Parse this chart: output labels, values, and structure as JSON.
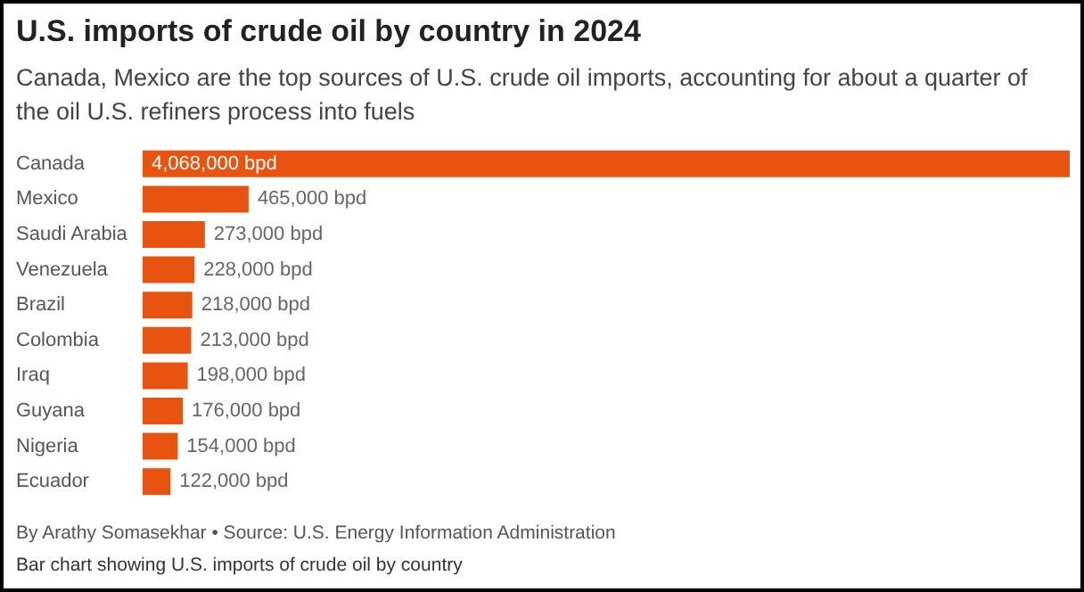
{
  "chart_data": {
    "type": "bar",
    "orientation": "horizontal",
    "title": "U.S. imports of crude oil by country in 2024",
    "subtitle": "Canada, Mexico are the top sources of U.S. crude oil imports, accounting for about a quarter of the oil U.S. refiners process into fuels",
    "categories": [
      "Canada",
      "Mexico",
      "Saudi Arabia",
      "Venezuela",
      "Brazil",
      "Colombia",
      "Iraq",
      "Guyana",
      "Nigeria",
      "Ecuador"
    ],
    "values": [
      4068000,
      465000,
      273000,
      228000,
      218000,
      213000,
      198000,
      176000,
      154000,
      122000
    ],
    "value_labels": [
      "4,068,000 bpd",
      "465,000 bpd",
      "273,000 bpd",
      "228,000 bpd",
      "218,000 bpd",
      "213,000 bpd",
      "198,000 bpd",
      "176,000 bpd",
      "154,000 bpd",
      "122,000 bpd"
    ],
    "color": "#e8540f",
    "annotations": [
      "By Arathy Somasekhar • Source: U.S. Energy Information Administration",
      "Bar chart showing U.S. imports of crude oil by country"
    ]
  }
}
